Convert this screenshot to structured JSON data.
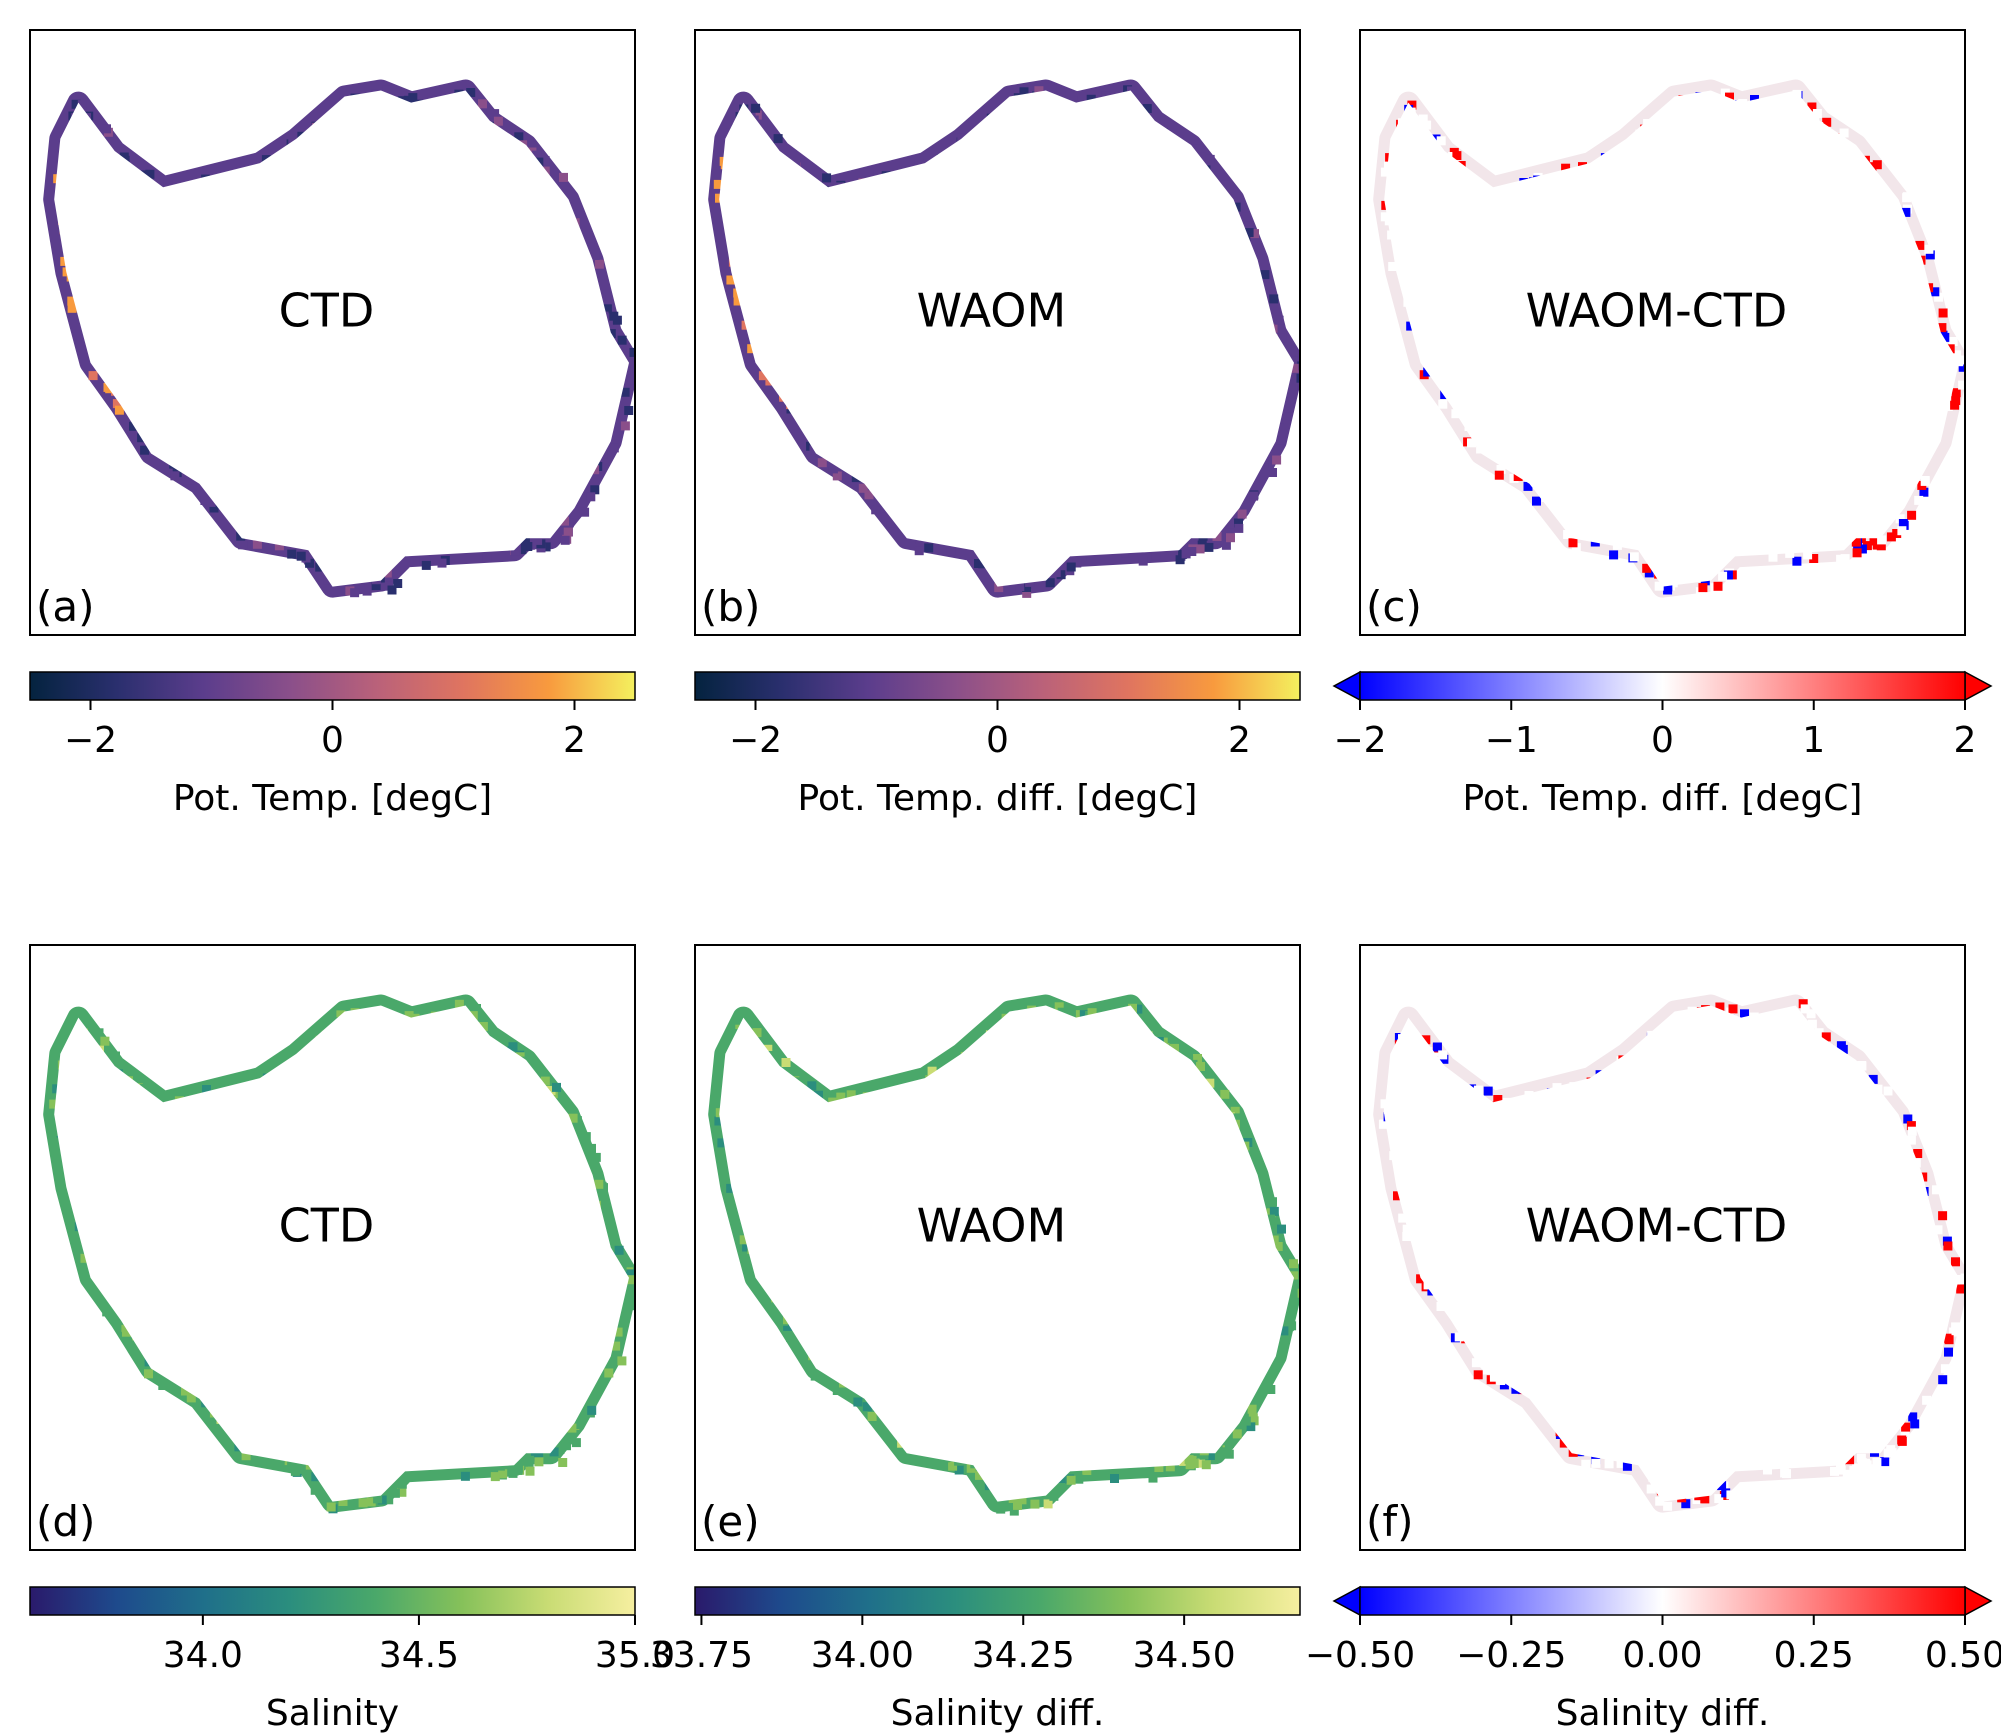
{
  "chart_data": [
    {
      "type": "heatmap",
      "panel_label": "(a)",
      "inner_label": "CTD",
      "colormap": "thermal",
      "colorbar": {
        "label": "Pot. Temp. [degC]",
        "range": [
          -2.5,
          2.5
        ],
        "ticks": [
          -2,
          0,
          2
        ],
        "tick_labels": [
          "−2",
          "0",
          "2"
        ],
        "extend": "neither"
      }
    },
    {
      "type": "heatmap",
      "panel_label": "(b)",
      "inner_label": "WAOM",
      "colormap": "thermal",
      "colorbar": {
        "label": "Pot. Temp. diff. [degC]",
        "range": [
          -2.5,
          2.5
        ],
        "ticks": [
          -2,
          0,
          2
        ],
        "tick_labels": [
          "−2",
          "0",
          "2"
        ],
        "extend": "neither"
      }
    },
    {
      "type": "heatmap",
      "panel_label": "(c)",
      "inner_label": "WAOM-CTD",
      "colormap": "bwr",
      "colorbar": {
        "label": "Pot. Temp. diff. [degC]",
        "range": [
          -2,
          2
        ],
        "ticks": [
          -2,
          -1,
          0,
          1,
          2
        ],
        "tick_labels": [
          "−2",
          "−1",
          "0",
          "1",
          "2"
        ],
        "extend": "both"
      }
    },
    {
      "type": "heatmap",
      "panel_label": "(d)",
      "inner_label": "CTD",
      "colormap": "haline",
      "colorbar": {
        "label": "Salinity",
        "range": [
          33.6,
          35.0
        ],
        "ticks": [
          34.0,
          34.5,
          35.0
        ],
        "tick_labels": [
          "34.0",
          "34.5",
          "35.0"
        ],
        "extend": "neither"
      }
    },
    {
      "type": "heatmap",
      "panel_label": "(e)",
      "inner_label": "WAOM",
      "colormap": "haline",
      "colorbar": {
        "label": "Salinity diff.",
        "range": [
          33.74,
          34.68
        ],
        "ticks": [
          33.75,
          34.0,
          34.25,
          34.5
        ],
        "tick_labels": [
          "33.75",
          "34.00",
          "34.25",
          "34.50"
        ],
        "extend": "neither"
      }
    },
    {
      "type": "heatmap",
      "panel_label": "(f)",
      "inner_label": "WAOM-CTD",
      "colormap": "bwr",
      "colorbar": {
        "label": "Salinity diff.",
        "range": [
          -0.5,
          0.5
        ],
        "ticks": [
          -0.5,
          -0.25,
          0.0,
          0.25,
          0.5
        ],
        "tick_labels": [
          "−0.50",
          "−0.25",
          "0.00",
          "0.25",
          "0.50"
        ],
        "extend": "both"
      }
    }
  ],
  "colors": {
    "thermal": [
      "#04233f",
      "#2a2f6e",
      "#5b3d8c",
      "#8a4f8a",
      "#b9617a",
      "#df7460",
      "#f89a3e",
      "#f4f05e"
    ],
    "haline": [
      "#2a1a6b",
      "#1e4a8c",
      "#1f6f8a",
      "#2b8e7e",
      "#4aa86a",
      "#86c15a",
      "#c9dc74",
      "#f6efa0"
    ],
    "bwr": [
      "#0000ff",
      "#ffffff",
      "#ff0000"
    ]
  }
}
